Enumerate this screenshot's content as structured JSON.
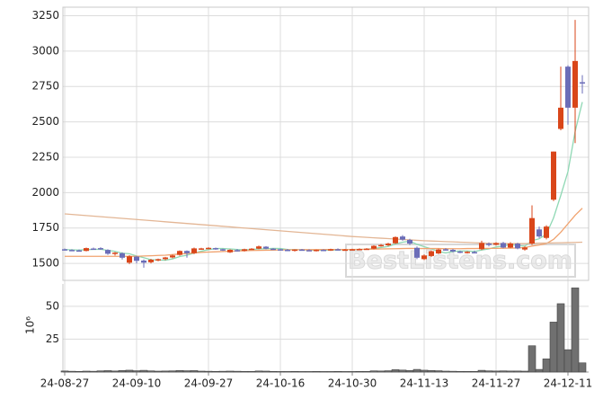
{
  "chart_data": {
    "type": "candlestick",
    "categories": [
      "24-08-27",
      null,
      null,
      null,
      null,
      null,
      null,
      null,
      null,
      null,
      "24-09-10",
      null,
      null,
      null,
      null,
      null,
      null,
      null,
      null,
      null,
      "24-09-27",
      null,
      null,
      null,
      null,
      null,
      null,
      null,
      null,
      null,
      "24-10-16",
      null,
      null,
      null,
      null,
      null,
      null,
      null,
      null,
      null,
      "24-10-30",
      null,
      null,
      null,
      null,
      null,
      null,
      null,
      null,
      null,
      "24-11-13",
      null,
      null,
      null,
      null,
      null,
      null,
      null,
      null,
      null,
      "24-11-27",
      null,
      null,
      null,
      null,
      null,
      null,
      null,
      null,
      null,
      "24-12-11",
      null,
      null
    ],
    "open": [
      1600,
      1595,
      1592,
      1588,
      1605,
      1608,
      1595,
      1568,
      1572,
      1505,
      1548,
      1520,
      1508,
      1526,
      1530,
      1542,
      1560,
      1588,
      1572,
      1604,
      1606,
      1608,
      1600,
      1578,
      1594,
      1588,
      1600,
      1604,
      1618,
      1604,
      1600,
      1596,
      1592,
      1598,
      1594,
      1590,
      1596,
      1592,
      1600,
      1596,
      1598,
      1600,
      1602,
      1604,
      1624,
      1628,
      1642,
      1690,
      1666,
      1610,
      1530,
      1552,
      1570,
      1600,
      1596,
      1584,
      1578,
      1580,
      1600,
      1640,
      1632,
      1644,
      1612,
      1640,
      1598,
      1640,
      1740,
      1680,
      1950,
      2450,
      2890,
      2600,
      2780
    ],
    "high": [
      1605,
      1600,
      1598,
      1612,
      1612,
      1614,
      1600,
      1580,
      1578,
      1558,
      1552,
      1528,
      1532,
      1534,
      1546,
      1562,
      1592,
      1592,
      1612,
      1610,
      1614,
      1612,
      1604,
      1600,
      1602,
      1604,
      1608,
      1626,
      1622,
      1608,
      1604,
      1602,
      1600,
      1602,
      1600,
      1598,
      1600,
      1604,
      1606,
      1602,
      1604,
      1606,
      1608,
      1628,
      1636,
      1646,
      1690,
      1700,
      1674,
      1620,
      1564,
      1592,
      1604,
      1608,
      1602,
      1590,
      1586,
      1590,
      1660,
      1648,
      1650,
      1652,
      1650,
      1646,
      1620,
      1910,
      1760,
      1770,
      2290,
      2890,
      2900,
      3220,
      2830
    ],
    "low": [
      1590,
      1588,
      1585,
      1585,
      1598,
      1596,
      1560,
      1555,
      1528,
      1495,
      1500,
      1470,
      1500,
      1515,
      1522,
      1536,
      1554,
      1540,
      1566,
      1596,
      1600,
      1596,
      1588,
      1574,
      1584,
      1584,
      1596,
      1600,
      1600,
      1596,
      1590,
      1588,
      1584,
      1590,
      1586,
      1584,
      1588,
      1588,
      1592,
      1590,
      1592,
      1594,
      1596,
      1600,
      1618,
      1622,
      1638,
      1660,
      1630,
      1530,
      1524,
      1546,
      1566,
      1592,
      1578,
      1572,
      1570,
      1572,
      1594,
      1620,
      1626,
      1606,
      1608,
      1600,
      1590,
      1630,
      1680,
      1670,
      1940,
      2440,
      2480,
      2350,
      2700
    ],
    "close": [
      1595,
      1592,
      1588,
      1608,
      1602,
      1600,
      1568,
      1576,
      1540,
      1550,
      1518,
      1505,
      1526,
      1530,
      1542,
      1556,
      1588,
      1572,
      1606,
      1606,
      1610,
      1600,
      1594,
      1596,
      1588,
      1600,
      1604,
      1620,
      1604,
      1600,
      1596,
      1592,
      1598,
      1594,
      1590,
      1596,
      1592,
      1600,
      1596,
      1598,
      1600,
      1602,
      1604,
      1624,
      1630,
      1640,
      1686,
      1668,
      1640,
      1540,
      1556,
      1586,
      1598,
      1596,
      1584,
      1578,
      1582,
      1576,
      1644,
      1632,
      1644,
      1612,
      1640,
      1606,
      1612,
      1820,
      1690,
      1760,
      2290,
      2600,
      2600,
      2930,
      2775
    ],
    "up_color": "#d9461a",
    "down_color": "#6b6db8",
    "ylim": [
      1380,
      3310
    ],
    "yticks": [
      1500,
      1750,
      2000,
      2250,
      2500,
      2750,
      3000,
      3250
    ],
    "grid": true,
    "moving_averages": [
      {
        "color": "#8fd8b4",
        "values": [
          1598,
          1596,
          1594,
          1597,
          1599,
          1600,
          1592,
          1585,
          1572,
          1568,
          1552,
          1540,
          1526,
          1524,
          1522,
          1532,
          1548,
          1558,
          1573,
          1586,
          1597,
          1605,
          1605,
          1602,
          1598,
          1596,
          1598,
          1602,
          1604,
          1606,
          1605,
          1598,
          1597,
          1596,
          1594,
          1594,
          1594,
          1594,
          1595,
          1596,
          1598,
          1599,
          1600,
          1606,
          1612,
          1620,
          1637,
          1650,
          1657,
          1635,
          1618,
          1602,
          1584,
          1574,
          1584,
          1588,
          1588,
          1584,
          1594,
          1602,
          1616,
          1622,
          1634,
          1626,
          1622,
          1660,
          1674,
          1706,
          1822,
          1980,
          2148,
          2432,
          2640
        ]
      },
      {
        "color": "#f0a26e",
        "values": [
          1550,
          1550,
          1550,
          1550,
          1550,
          1550,
          1550,
          1550,
          1550,
          1550,
          1550,
          1552,
          1554,
          1556,
          1558,
          1562,
          1566,
          1570,
          1574,
          1578,
          1580,
          1582,
          1584,
          1586,
          1588,
          1590,
          1591,
          1592,
          1593,
          1594,
          1595,
          1596,
          1596,
          1597,
          1597,
          1597,
          1598,
          1598,
          1598,
          1598,
          1598,
          1599,
          1600,
          1601,
          1602,
          1603,
          1604,
          1605,
          1606,
          1605,
          1605,
          1605,
          1605,
          1604,
          1604,
          1604,
          1605,
          1605,
          1606,
          1606,
          1606,
          1607,
          1608,
          1609,
          1612,
          1622,
          1630,
          1640,
          1670,
          1720,
          1780,
          1840,
          1890
        ]
      },
      {
        "color": "#e3b695",
        "values": [
          1850,
          1846,
          1842,
          1838,
          1834,
          1830,
          1826,
          1822,
          1818,
          1814,
          1810,
          1806,
          1802,
          1798,
          1794,
          1790,
          1786,
          1782,
          1778,
          1774,
          1770,
          1766,
          1762,
          1758,
          1754,
          1750,
          1746,
          1742,
          1738,
          1734,
          1730,
          1726,
          1722,
          1718,
          1714,
          1710,
          1706,
          1702,
          1698,
          1694,
          1690,
          1687,
          1684,
          1681,
          1678,
          1675,
          1672,
          1669,
          1666,
          1663,
          1660,
          1658,
          1656,
          1654,
          1652,
          1650,
          1648,
          1646,
          1644,
          1642,
          1640,
          1640,
          1640,
          1640,
          1640,
          1642,
          1643,
          1644,
          1645,
          1646,
          1647,
          1648,
          1650
        ]
      }
    ],
    "volume": {
      "values": [
        0.8,
        0.6,
        0.5,
        0.7,
        0.6,
        0.9,
        1.1,
        0.8,
        1.2,
        1.4,
        1.0,
        1.3,
        0.9,
        0.7,
        0.8,
        0.9,
        1.2,
        1.0,
        1.1,
        0.7,
        0.6,
        0.5,
        0.6,
        0.7,
        0.6,
        0.5,
        0.5,
        0.8,
        0.7,
        0.5,
        0.4,
        0.4,
        0.5,
        0.4,
        0.4,
        0.5,
        0.4,
        0.4,
        0.5,
        0.4,
        0.4,
        0.5,
        0.5,
        0.9,
        0.8,
        1.0,
        1.8,
        1.5,
        1.2,
        2.0,
        1.4,
        1.2,
        1.0,
        0.7,
        0.6,
        0.5,
        0.5,
        0.5,
        1.3,
        0.9,
        0.8,
        0.9,
        0.8,
        0.8,
        0.7,
        20,
        2,
        10,
        38,
        52,
        17,
        64,
        7
      ],
      "color": "#707070",
      "ylim": [
        0,
        67
      ],
      "yticks": [
        25,
        50
      ],
      "unit_label": "10⁶"
    },
    "watermark": "BestListens.com"
  }
}
